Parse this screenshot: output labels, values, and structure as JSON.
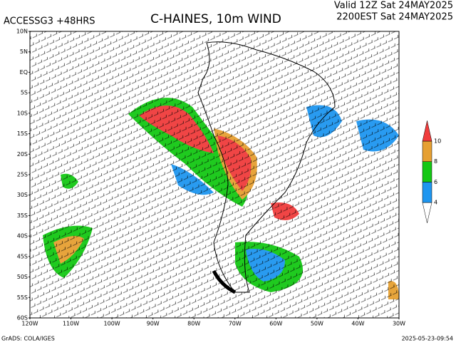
{
  "header": {
    "model": "ACCESSG3 +48HRS",
    "title": "C-HAINES, 10m WIND",
    "valid": "Valid 12Z Sat 24MAY2025",
    "local": "2200EST Sat 24MAY2025"
  },
  "axes": {
    "lat_labels": [
      "10N",
      "5N",
      "EQ",
      "5S",
      "10S",
      "15S",
      "20S",
      "25S",
      "30S",
      "35S",
      "40S",
      "45S",
      "50S",
      "55S",
      "60S"
    ],
    "lon_labels": [
      "120W",
      "110W",
      "100W",
      "90W",
      "80W",
      "70W",
      "60W",
      "50W",
      "40W",
      "30W"
    ]
  },
  "colorbar": {
    "levels": [
      4,
      6,
      8,
      10
    ],
    "colors": [
      "#ffffff",
      "#1e96f0",
      "#14c814",
      "#e6a032",
      "#f03c3c"
    ]
  },
  "footer": {
    "left": "GrADS: COLA/IGES",
    "right": "2025-05-23-09:54"
  }
}
